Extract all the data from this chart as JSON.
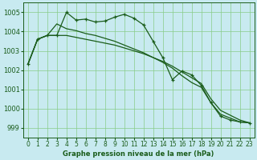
{
  "title": "Graphe pression niveau de la mer (hPa)",
  "background_color": "#c8eaf0",
  "grid_color": "#88cc88",
  "line_color": "#1a5c1a",
  "spine_color": "#1a5c1a",
  "xlim": [
    -0.5,
    23.5
  ],
  "ylim": [
    998.5,
    1005.5
  ],
  "yticks": [
    999,
    1000,
    1001,
    1002,
    1003,
    1004,
    1005
  ],
  "xticks": [
    0,
    1,
    2,
    3,
    4,
    5,
    6,
    7,
    8,
    9,
    10,
    11,
    12,
    13,
    14,
    15,
    16,
    17,
    18,
    19,
    20,
    21,
    22,
    23
  ],
  "line1_x": [
    0,
    1,
    2,
    3,
    4,
    5,
    6,
    7,
    8,
    9,
    10,
    11,
    12,
    13,
    14,
    15,
    16,
    17,
    18,
    19,
    20,
    21,
    22,
    23
  ],
  "line1_y": [
    1002.3,
    1003.6,
    1003.8,
    1003.8,
    1005.0,
    1004.6,
    1004.65,
    1004.5,
    1004.55,
    1004.75,
    1004.9,
    1004.7,
    1004.35,
    1003.5,
    1002.65,
    1001.5,
    1001.95,
    1001.75,
    1001.2,
    1000.3,
    999.6,
    999.4,
    999.3,
    999.25
  ],
  "line2_x": [
    0,
    1,
    2,
    3,
    4,
    5,
    6,
    7,
    8,
    9,
    10,
    11,
    12,
    13,
    14,
    15,
    16,
    17,
    18,
    19,
    20,
    21,
    22,
    23
  ],
  "line2_y": [
    1002.3,
    1003.6,
    1003.8,
    1004.4,
    1004.15,
    1004.05,
    1003.9,
    1003.8,
    1003.65,
    1003.5,
    1003.3,
    1003.1,
    1002.9,
    1002.65,
    1002.4,
    1002.1,
    1001.7,
    1001.35,
    1001.1,
    1000.3,
    999.7,
    999.5,
    999.3,
    999.25
  ],
  "line3_x": [
    0,
    1,
    2,
    3,
    4,
    5,
    6,
    7,
    8,
    9,
    10,
    11,
    12,
    13,
    14,
    15,
    16,
    17,
    18,
    19,
    20,
    21,
    22,
    23
  ],
  "line3_y": [
    1002.3,
    1003.6,
    1003.8,
    1003.8,
    1003.8,
    1003.7,
    1003.6,
    1003.5,
    1003.4,
    1003.3,
    1003.15,
    1003.0,
    1002.85,
    1002.65,
    1002.45,
    1002.2,
    1001.9,
    1001.6,
    1001.3,
    1000.5,
    999.9,
    999.65,
    999.4,
    999.25
  ],
  "xlabel_fontsize": 6,
  "tick_fontsize": 5.5,
  "ytick_fontsize": 6
}
